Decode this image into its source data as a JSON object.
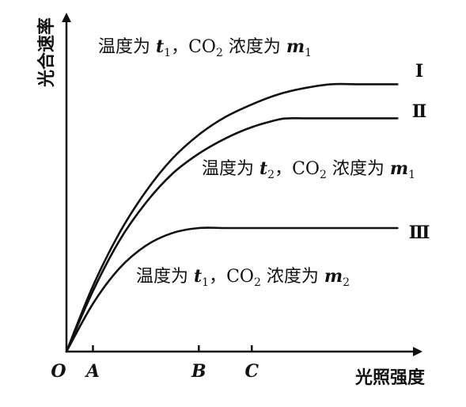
{
  "chart_data": {
    "type": "line",
    "ylabel": "光合速率",
    "xlabel": "光照强度",
    "origin_label": "O",
    "x_ticks": [
      {
        "label": "A",
        "value": 1
      },
      {
        "label": "B",
        "value": 5
      },
      {
        "label": "C",
        "value": 7
      }
    ],
    "series": [
      {
        "name": "Ⅰ",
        "condition": {
          "prefix": "温度为 ",
          "t": "t",
          "t_sub": "1",
          "mid": "，CO",
          "co2_sub": "2",
          "conc": " 浓度为 ",
          "m": "m",
          "m_sub": "1"
        },
        "x": [
          0,
          1,
          2,
          3,
          4,
          5,
          6,
          7,
          8,
          9,
          10,
          11,
          12.5
        ],
        "y": [
          0,
          2.6,
          4.7,
          6.35,
          7.65,
          8.6,
          9.3,
          9.8,
          10.2,
          10.45,
          10.6,
          10.6,
          10.6
        ]
      },
      {
        "name": "Ⅱ",
        "condition": {
          "prefix": "温度为 ",
          "t": "t",
          "t_sub": "2",
          "mid": "，CO",
          "co2_sub": "2",
          "conc": " 浓度为 ",
          "m": "m",
          "m_sub": "1"
        },
        "x": [
          0,
          1,
          2,
          3,
          4,
          5,
          6,
          7,
          8,
          8.4,
          9,
          10,
          11,
          12.5
        ],
        "y": [
          0,
          2.4,
          4.4,
          5.9,
          7.05,
          7.85,
          8.45,
          8.9,
          9.2,
          9.25,
          9.25,
          9.25,
          9.25,
          9.25
        ]
      },
      {
        "name": "Ⅲ",
        "condition": {
          "prefix": "温度为 ",
          "t": "t",
          "t_sub": "1",
          "mid": "，CO",
          "co2_sub": "2",
          "conc": " 浓度为 ",
          "m": "m",
          "m_sub": "2"
        },
        "x": [
          0,
          1,
          2,
          3,
          4,
          5,
          6,
          7,
          8,
          9,
          10,
          11,
          12.5
        ],
        "y": [
          0,
          1.9,
          3.3,
          4.2,
          4.7,
          4.9,
          4.9,
          4.9,
          4.9,
          4.9,
          4.9,
          4.9,
          4.9
        ]
      }
    ],
    "xlim": [
      0,
      13
    ],
    "ylim": [
      0,
      13
    ]
  }
}
